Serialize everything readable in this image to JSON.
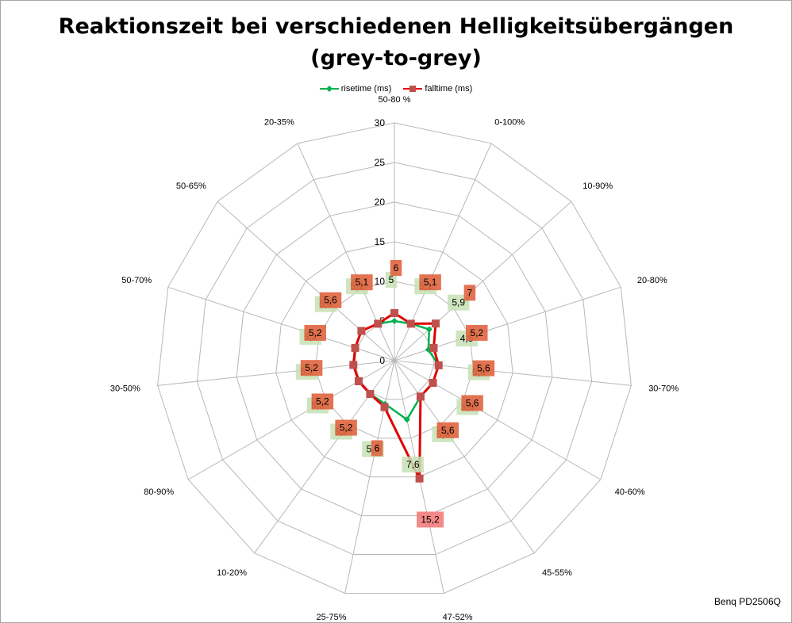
{
  "chart_data": {
    "type": "radar",
    "title_line1": "Reaktionszeit bei verschiedenen Helligkeitsübergängen",
    "title_line2": "(grey-to-grey)",
    "categories": [
      "50-80 %",
      "0-100%",
      "10-90%",
      "20-80%",
      "30-70%",
      "40-60%",
      "45-55%",
      "47-52%",
      "25-75%",
      "10-20%",
      "80-90%",
      "30-50%",
      "50-70%",
      "50-65%",
      "20-35%"
    ],
    "r_ticks": [
      "0",
      "5",
      "10",
      "15",
      "20",
      "25",
      "30"
    ],
    "rlim": [
      0,
      30
    ],
    "legend_position": "top",
    "series": [
      {
        "name": "risetime (ms)",
        "color": "#00b050",
        "label_color": "#c5e0b4",
        "values": [
          5,
          5.1,
          5.9,
          4.5,
          5.6,
          5.6,
          5.6,
          7.6,
          5.6,
          5.2,
          5.2,
          5.2,
          5.2,
          5.6,
          5.1
        ]
      },
      {
        "name": "falltime (ms)",
        "color": "#e00000",
        "label_color": "#f08080",
        "values": [
          6,
          5.1,
          7,
          5.2,
          5.6,
          5.6,
          5.6,
          15.2,
          6,
          5.2,
          5.2,
          5.2,
          5.2,
          5.6,
          5.1
        ]
      }
    ],
    "labels": [
      [
        "5",
        "6"
      ],
      [
        "5,1",
        "5,1"
      ],
      [
        "5,9",
        "7"
      ],
      [
        "4,5",
        "5,2"
      ],
      [
        "5,6",
        "5,6"
      ],
      [
        "5,6",
        "5,6"
      ],
      [
        "5,6",
        "5,6"
      ],
      [
        "7,6",
        "15,2"
      ],
      [
        "5,6",
        "6"
      ],
      [
        "5,2",
        "5,2"
      ],
      [
        "5,2",
        "5,2"
      ],
      [
        "5,2",
        "5,2"
      ],
      [
        "5,2",
        "5,2"
      ],
      [
        "5,6",
        "5,6"
      ],
      [
        "5,1",
        "5,1"
      ]
    ]
  },
  "footer": "Benq PD2506Q"
}
